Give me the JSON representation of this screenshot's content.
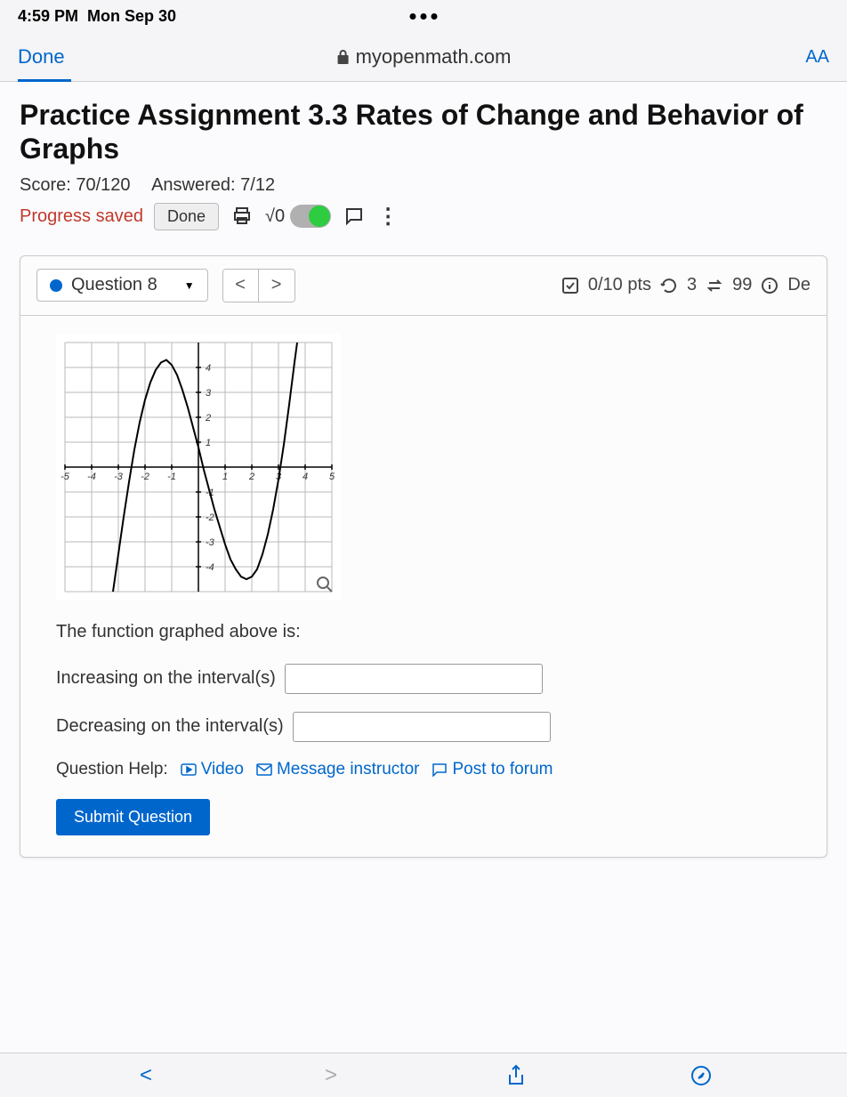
{
  "statusBar": {
    "time": "4:59 PM",
    "date": "Mon Sep 30"
  },
  "browser": {
    "done": "Done",
    "url": "myopenmath.com",
    "aa": "AA"
  },
  "page": {
    "title": "Practice Assignment 3.3 Rates of Change and Behavior of Graphs",
    "score": "Score: 70/120",
    "answered": "Answered: 7/12",
    "progressSaved": "Progress saved",
    "doneBtn": "Done",
    "sqrt": "√0"
  },
  "question": {
    "label": "Question 8",
    "pts": "0/10 pts",
    "retries": "3",
    "attempts": "99",
    "de": "De",
    "prompt": "The function graphed above is:",
    "increasingLabel": "Increasing on the interval(s)",
    "decreasingLabel": "Decreasing on the interval(s)",
    "helpLabel": "Question Help:",
    "video": "Video",
    "message": "Message instructor",
    "forum": "Post to forum",
    "submit": "Submit Question"
  },
  "graph": {
    "xmin": -5,
    "xmax": 5,
    "ymin": -5,
    "ymax": 5,
    "xticks": [
      -5,
      -4,
      -3,
      -2,
      -1,
      1,
      2,
      3,
      4,
      5
    ],
    "yticks": [
      -4,
      -3,
      -2,
      -1,
      1,
      2,
      3,
      4
    ],
    "background": "#ffffff",
    "grid_color": "#b8b8b8",
    "axis_color": "#000000",
    "curve_color": "#000000",
    "tick_fontsize": 11,
    "curve": [
      [
        -3.2,
        -5
      ],
      [
        -3.0,
        -3.5
      ],
      [
        -2.8,
        -2.0
      ],
      [
        -2.6,
        -0.6
      ],
      [
        -2.4,
        0.7
      ],
      [
        -2.2,
        1.8
      ],
      [
        -2.0,
        2.7
      ],
      [
        -1.8,
        3.4
      ],
      [
        -1.6,
        3.9
      ],
      [
        -1.4,
        4.2
      ],
      [
        -1.2,
        4.3
      ],
      [
        -1.0,
        4.1
      ],
      [
        -0.8,
        3.7
      ],
      [
        -0.6,
        3.1
      ],
      [
        -0.4,
        2.4
      ],
      [
        -0.2,
        1.6
      ],
      [
        0.0,
        0.8
      ],
      [
        0.2,
        -0.1
      ],
      [
        0.4,
        -0.9
      ],
      [
        0.6,
        -1.7
      ],
      [
        0.8,
        -2.4
      ],
      [
        1.0,
        -3.1
      ],
      [
        1.2,
        -3.7
      ],
      [
        1.4,
        -4.1
      ],
      [
        1.6,
        -4.4
      ],
      [
        1.8,
        -4.5
      ],
      [
        2.0,
        -4.4
      ],
      [
        2.2,
        -4.1
      ],
      [
        2.4,
        -3.5
      ],
      [
        2.6,
        -2.7
      ],
      [
        2.8,
        -1.7
      ],
      [
        3.0,
        -0.5
      ],
      [
        3.2,
        0.9
      ],
      [
        3.4,
        2.5
      ],
      [
        3.6,
        4.2
      ],
      [
        3.7,
        5
      ]
    ]
  }
}
